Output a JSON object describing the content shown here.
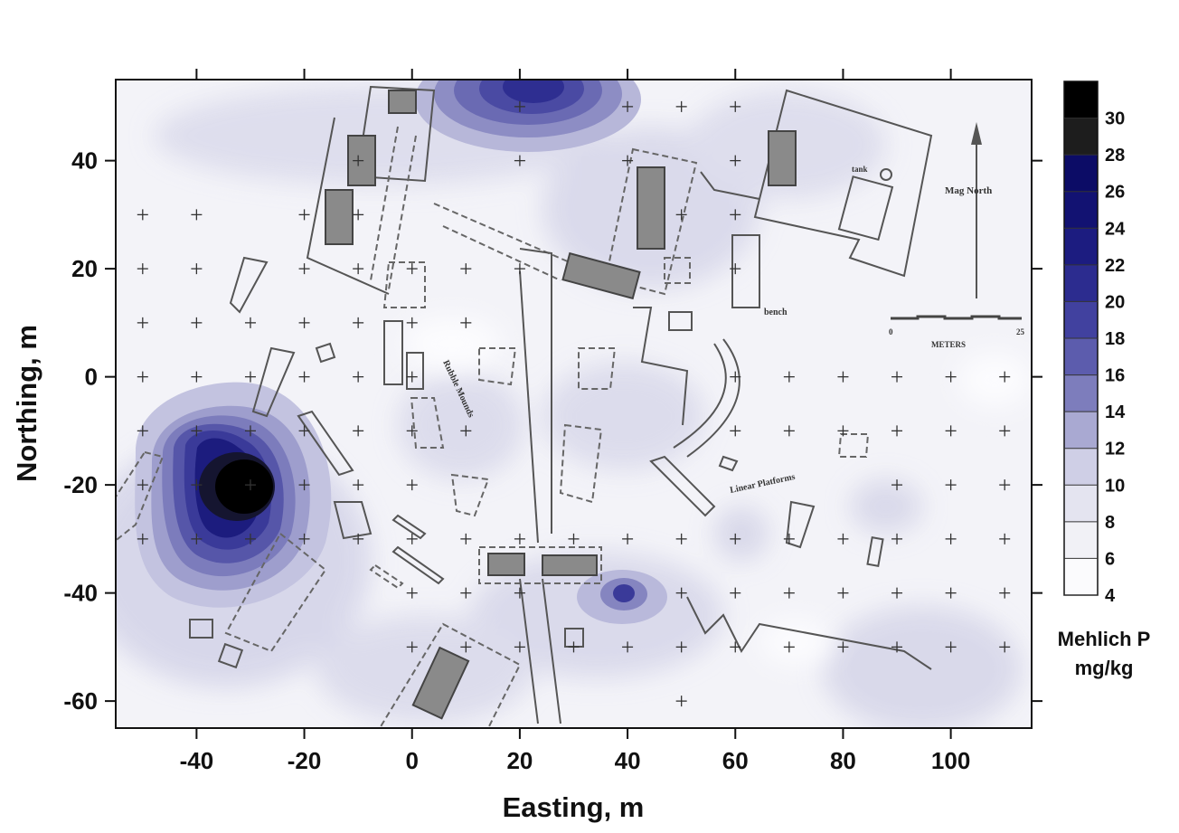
{
  "map": {
    "x_axis_title": "Easting, m",
    "y_axis_title": "Northing, m",
    "x_ticks": [
      -40,
      -20,
      0,
      20,
      40,
      60,
      80,
      100
    ],
    "y_ticks": [
      40,
      20,
      0,
      -20,
      -40,
      -60
    ],
    "x_range": [
      -55,
      115
    ],
    "y_range": [
      -65,
      55
    ],
    "annotations": {
      "mag_north": "Mag North",
      "meters": "METERS",
      "scale_zero": "0",
      "scale_end": "25",
      "tank": "tank",
      "bench": "bench",
      "linear_platforms": "Linear Platforms",
      "rubble_mounds": "Rubble Mounds"
    }
  },
  "colorbar": {
    "title_line1": "Mehlich P",
    "title_line2": "mg/kg",
    "levels": [
      4,
      6,
      8,
      10,
      12,
      14,
      16,
      18,
      20,
      22,
      24,
      26,
      28,
      30
    ],
    "colors": [
      "#fbfbfd",
      "#f1f1f6",
      "#e4e4f0",
      "#cfcfe6",
      "#a9a9d2",
      "#7d7dbc",
      "#5c5cad",
      "#41419f",
      "#2c2c8f",
      "#1c1c80",
      "#121272",
      "#0c0c66",
      "#1d1d1d",
      "#000000"
    ]
  },
  "chart_data": {
    "type": "heatmap",
    "title": "",
    "xlabel": "Easting, m",
    "ylabel": "Northing, m",
    "xlim": [
      -55,
      115
    ],
    "ylim": [
      -65,
      55
    ],
    "colorbar_label": "Mehlich P mg/kg",
    "colorbar_range": [
      4,
      32
    ],
    "hotspots": [
      {
        "x": -31,
        "y": -20,
        "value": 31
      },
      {
        "x": 24,
        "y": 50,
        "value": 18
      },
      {
        "x": 40,
        "y": -40,
        "value": 18
      },
      {
        "x": 90,
        "y": -55,
        "value": 10
      },
      {
        "x": 100,
        "y": 48,
        "value": 9
      }
    ],
    "sample_points": [
      {
        "x": 20,
        "y": 50
      },
      {
        "x": 40,
        "y": 50
      },
      {
        "x": 50,
        "y": 50
      },
      {
        "x": 60,
        "y": 50
      },
      {
        "x": -10,
        "y": 40
      },
      {
        "x": 20,
        "y": 40
      },
      {
        "x": 40,
        "y": 40
      },
      {
        "x": 60,
        "y": 40
      },
      {
        "x": -50,
        "y": 30
      },
      {
        "x": -40,
        "y": 30
      },
      {
        "x": -20,
        "y": 30
      },
      {
        "x": -10,
        "y": 30
      },
      {
        "x": 50,
        "y": 30
      },
      {
        "x": 60,
        "y": 30
      },
      {
        "x": -50,
        "y": 20
      },
      {
        "x": -40,
        "y": 20
      },
      {
        "x": -20,
        "y": 20
      },
      {
        "x": -10,
        "y": 20
      },
      {
        "x": 0,
        "y": 20
      },
      {
        "x": 10,
        "y": 20
      },
      {
        "x": 20,
        "y": 20
      },
      {
        "x": 60,
        "y": 20
      },
      {
        "x": -50,
        "y": 10
      },
      {
        "x": -40,
        "y": 10
      },
      {
        "x": -30,
        "y": 10
      },
      {
        "x": -20,
        "y": 10
      },
      {
        "x": -10,
        "y": 10
      },
      {
        "x": 0,
        "y": 10
      },
      {
        "x": 10,
        "y": 10
      },
      {
        "x": -50,
        "y": 0
      },
      {
        "x": -40,
        "y": 0
      },
      {
        "x": -30,
        "y": 0
      },
      {
        "x": -20,
        "y": 0
      },
      {
        "x": -10,
        "y": 0
      },
      {
        "x": 0,
        "y": 0
      },
      {
        "x": 60,
        "y": 0
      },
      {
        "x": 70,
        "y": 0
      },
      {
        "x": 80,
        "y": 0
      },
      {
        "x": 90,
        "y": 0
      },
      {
        "x": 100,
        "y": 0
      },
      {
        "x": 110,
        "y": 0
      },
      {
        "x": -50,
        "y": -10
      },
      {
        "x": -40,
        "y": -10
      },
      {
        "x": -30,
        "y": -10
      },
      {
        "x": -20,
        "y": -10
      },
      {
        "x": -10,
        "y": -10
      },
      {
        "x": 0,
        "y": -10
      },
      {
        "x": 10,
        "y": -10
      },
      {
        "x": 60,
        "y": -10
      },
      {
        "x": 70,
        "y": -10
      },
      {
        "x": 80,
        "y": -10
      },
      {
        "x": 90,
        "y": -10
      },
      {
        "x": 100,
        "y": -10
      },
      {
        "x": 110,
        "y": -10
      },
      {
        "x": -50,
        "y": -20
      },
      {
        "x": -40,
        "y": -20
      },
      {
        "x": -30,
        "y": -20
      },
      {
        "x": -20,
        "y": -20
      },
      {
        "x": -10,
        "y": -20
      },
      {
        "x": 0,
        "y": -20
      },
      {
        "x": 90,
        "y": -20
      },
      {
        "x": 100,
        "y": -20
      },
      {
        "x": 110,
        "y": -20
      },
      {
        "x": -50,
        "y": -30
      },
      {
        "x": -40,
        "y": -30
      },
      {
        "x": -30,
        "y": -30
      },
      {
        "x": -20,
        "y": -30
      },
      {
        "x": -10,
        "y": -30
      },
      {
        "x": 0,
        "y": -30
      },
      {
        "x": 10,
        "y": -30
      },
      {
        "x": 20,
        "y": -30
      },
      {
        "x": 30,
        "y": -30
      },
      {
        "x": 40,
        "y": -30
      },
      {
        "x": 50,
        "y": -30
      },
      {
        "x": 60,
        "y": -30
      },
      {
        "x": 70,
        "y": -30
      },
      {
        "x": 80,
        "y": -30
      },
      {
        "x": 90,
        "y": -30
      },
      {
        "x": 100,
        "y": -30
      },
      {
        "x": 110,
        "y": -30
      },
      {
        "x": 0,
        "y": -40
      },
      {
        "x": 10,
        "y": -40
      },
      {
        "x": 20,
        "y": -40
      },
      {
        "x": 50,
        "y": -40
      },
      {
        "x": 60,
        "y": -40
      },
      {
        "x": 70,
        "y": -40
      },
      {
        "x": 80,
        "y": -40
      },
      {
        "x": 90,
        "y": -40
      },
      {
        "x": 100,
        "y": -40
      },
      {
        "x": 110,
        "y": -40
      },
      {
        "x": 0,
        "y": -50
      },
      {
        "x": 10,
        "y": -50
      },
      {
        "x": 20,
        "y": -50
      },
      {
        "x": 30,
        "y": -50
      },
      {
        "x": 40,
        "y": -50
      },
      {
        "x": 50,
        "y": -50
      },
      {
        "x": 60,
        "y": -50
      },
      {
        "x": 70,
        "y": -50
      },
      {
        "x": 80,
        "y": -50
      },
      {
        "x": 90,
        "y": -50
      },
      {
        "x": 100,
        "y": -50
      },
      {
        "x": 110,
        "y": -50
      },
      {
        "x": 50,
        "y": -60
      }
    ]
  }
}
